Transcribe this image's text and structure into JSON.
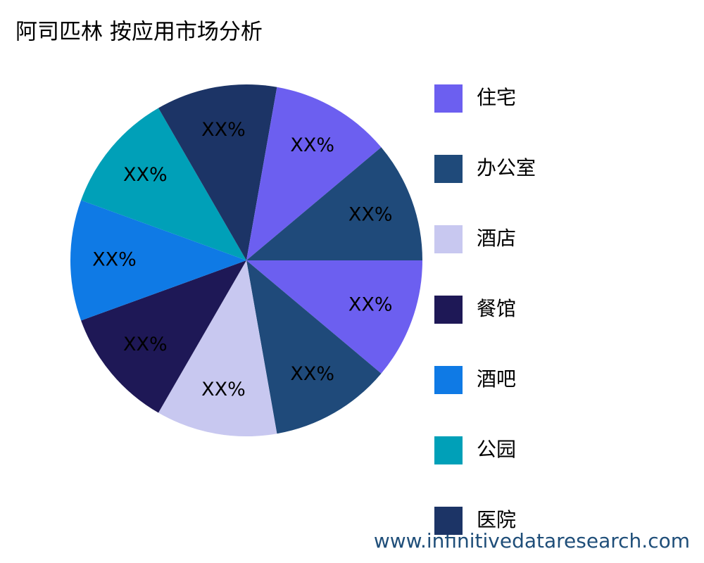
{
  "chart_data": {
    "type": "pie",
    "title": "阿司匹林 按应用市场分析",
    "categories": [
      "住宅",
      "办公室",
      "酒店",
      "餐馆",
      "酒吧",
      "公园",
      "医院",
      null,
      null
    ],
    "values": [
      11.1,
      11.1,
      11.1,
      11.1,
      11.1,
      11.1,
      11.1,
      11.1,
      11.1
    ],
    "value_labels": [
      "XX%",
      "XX%",
      "XX%",
      "XX%",
      "XX%",
      "XX%",
      "XX%",
      "XX%",
      "XX%"
    ],
    "colors": [
      "#6c5ff0",
      "#1f4a7a",
      "#c8c8f0",
      "#1e1856",
      "#0f7ae5",
      "#00a0b8",
      "#1c3466",
      "#6c5ff0",
      "#1f4a7a"
    ],
    "watermark": "www.infinitivedataresearch.com"
  }
}
